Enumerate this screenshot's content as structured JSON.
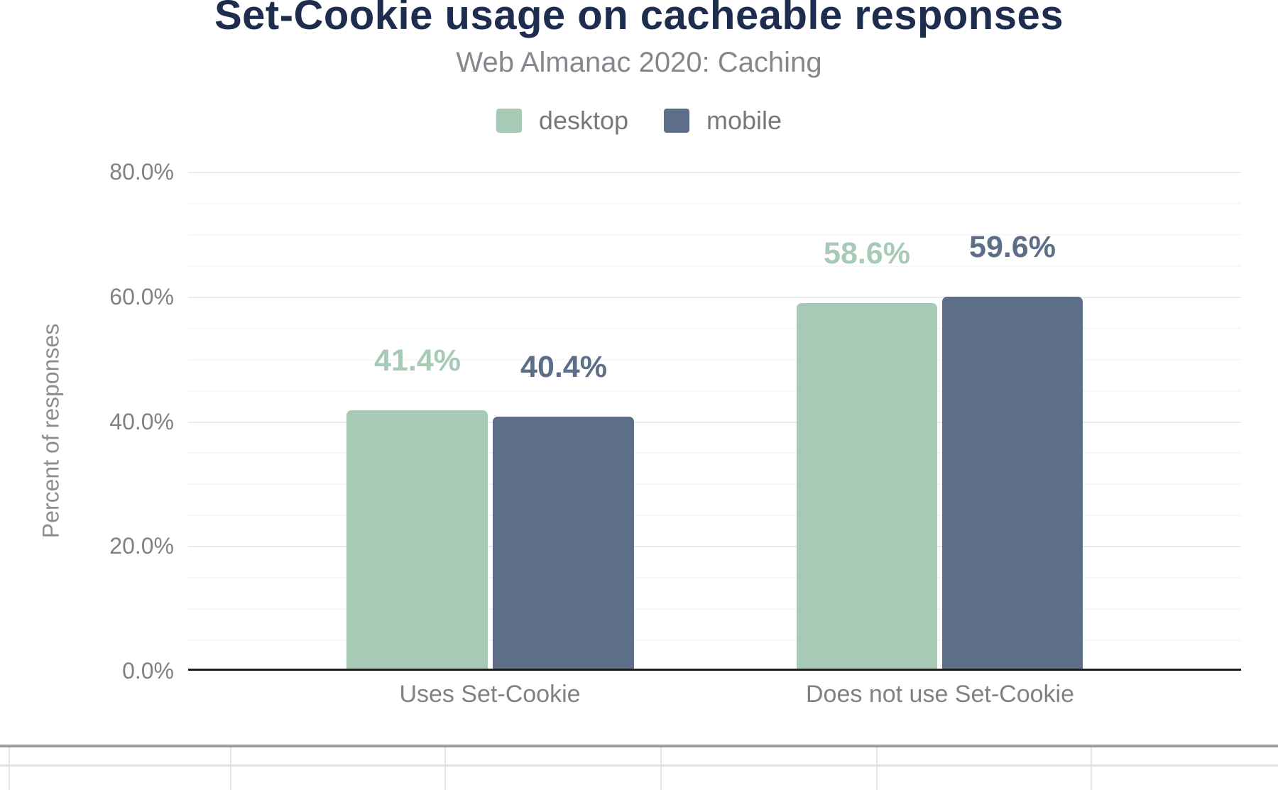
{
  "chart_data": {
    "type": "bar",
    "title": "Set-Cookie usage on cacheable responses",
    "subtitle": "Web Almanac 2020: Caching",
    "categories": [
      "Uses Set-Cookie",
      "Does not use Set-Cookie"
    ],
    "series": [
      {
        "name": "desktop",
        "color": "#a7cab6",
        "values": [
          41.4,
          58.6
        ],
        "value_labels": [
          "41.4%",
          "58.6%"
        ]
      },
      {
        "name": "mobile",
        "color": "#5d6f88",
        "values": [
          40.4,
          59.6
        ],
        "value_labels": [
          "40.4%",
          "59.6%"
        ]
      }
    ],
    "xlabel": "",
    "ylabel": "Percent of responses",
    "ylim": [
      0,
      80
    ],
    "y_ticks": [
      {
        "value": 80,
        "label": "80.0%"
      },
      {
        "value": 60,
        "label": "60.0%"
      },
      {
        "value": 40,
        "label": "40.0%"
      },
      {
        "value": 20,
        "label": "20.0%"
      },
      {
        "value": 0,
        "label": "0.0%"
      }
    ],
    "minor_grid_step": 5,
    "major_grid_step": 20,
    "grid": "horizontal",
    "legend_position": "top",
    "title_color": "#1e2c4e",
    "axis_line_color": "#1d1d1d",
    "text_color": "#7e8286"
  }
}
